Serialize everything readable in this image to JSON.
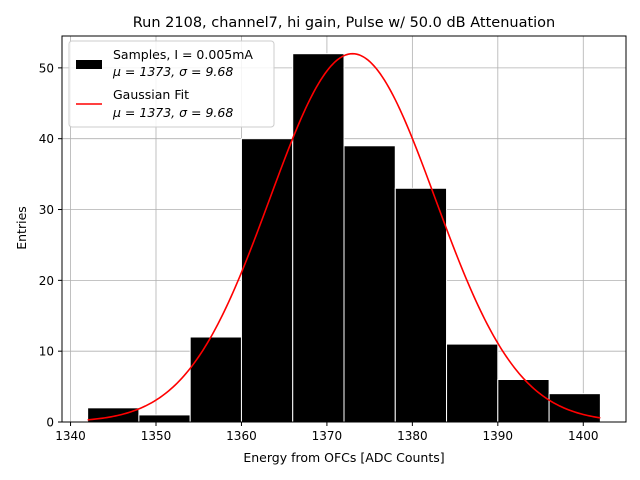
{
  "chart_data": {
    "type": "bar",
    "title": "Run 2108, channel7, hi gain, Pulse w/ 50.0 dB Attenuation",
    "xlabel": "Energy from OFCs [ADC Counts]",
    "ylabel": "Entries",
    "xlim": [
      1339,
      1405
    ],
    "ylim": [
      0,
      54.5
    ],
    "xticks": [
      1340,
      1350,
      1360,
      1370,
      1380,
      1390,
      1400
    ],
    "yticks": [
      0,
      10,
      20,
      30,
      40,
      50
    ],
    "grid": true,
    "legend_position": "top-left",
    "bins": [
      {
        "x0": 1342,
        "x1": 1348,
        "count": 2
      },
      {
        "x0": 1348,
        "x1": 1354,
        "count": 1
      },
      {
        "x0": 1354,
        "x1": 1360,
        "count": 12
      },
      {
        "x0": 1360,
        "x1": 1366,
        "count": 40
      },
      {
        "x0": 1366,
        "x1": 1372,
        "count": 52
      },
      {
        "x0": 1372,
        "x1": 1378,
        "count": 39
      },
      {
        "x0": 1378,
        "x1": 1384,
        "count": 33
      },
      {
        "x0": 1384,
        "x1": 1390,
        "count": 11
      },
      {
        "x0": 1390,
        "x1": 1396,
        "count": 6
      },
      {
        "x0": 1396,
        "x1": 1402,
        "count": 4
      }
    ],
    "fit": {
      "mu": 1373,
      "sigma": 9.68,
      "amplitude": 52,
      "x_range": [
        1342,
        1402
      ]
    },
    "series": [
      {
        "name": "Samples, I = 0.005mA",
        "stats": "μ = 1373, σ = 9.68",
        "color": "#000000"
      },
      {
        "name": "Gaussian Fit",
        "stats": "μ = 1373, σ = 9.68",
        "color": "#ff0000"
      }
    ]
  }
}
